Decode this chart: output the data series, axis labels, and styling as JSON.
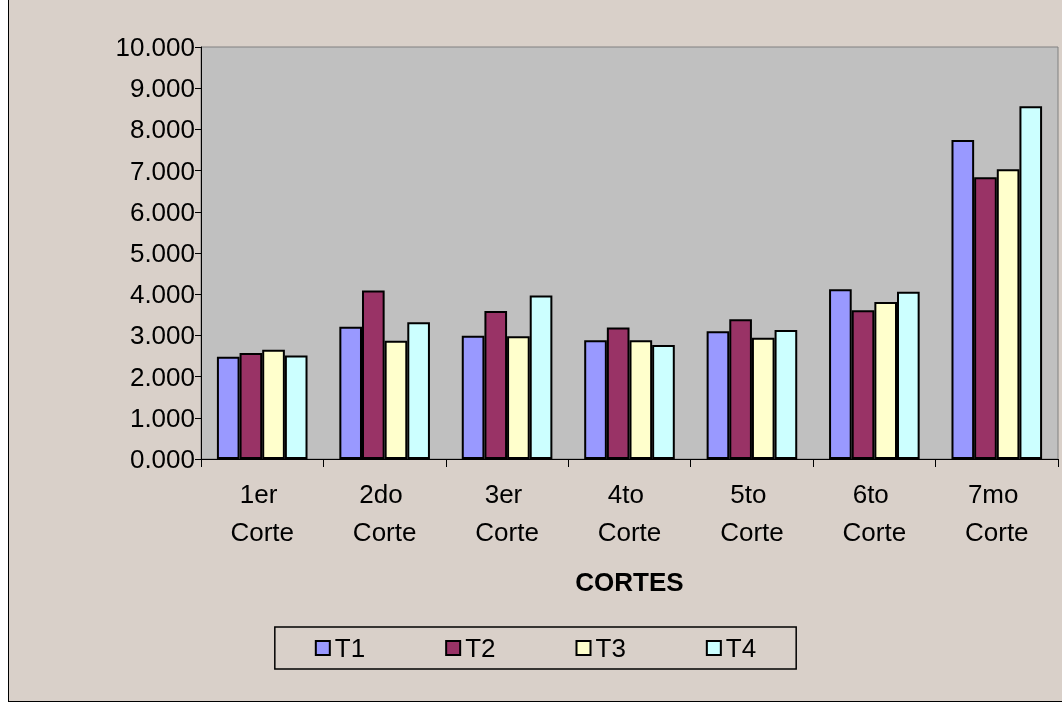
{
  "chart_data": {
    "type": "bar",
    "xlabel": "CORTES",
    "categories": [
      "1er Corte",
      "2do Corte",
      "3er Corte",
      "4to Corte",
      "5to Corte",
      "6to Corte",
      "7mo Corte"
    ],
    "series": [
      {
        "name": "T1",
        "color": "#9999ff",
        "values": [
          2.48,
          3.21,
          2.99,
          2.88,
          3.1,
          4.12,
          7.74
        ]
      },
      {
        "name": "T2",
        "color": "#993366",
        "values": [
          2.57,
          4.09,
          3.59,
          3.19,
          3.39,
          3.61,
          6.84
        ]
      },
      {
        "name": "T3",
        "color": "#ffffcc",
        "values": [
          2.65,
          2.87,
          2.98,
          2.88,
          2.94,
          3.81,
          7.03
        ]
      },
      {
        "name": "T4",
        "color": "#ccffff",
        "values": [
          2.51,
          3.32,
          3.97,
          2.77,
          3.13,
          4.06,
          8.56
        ]
      }
    ],
    "ylim": [
      0,
      10
    ],
    "yticks": [
      {
        "value": 0,
        "label": "0.000"
      },
      {
        "value": 1,
        "label": "1.000"
      },
      {
        "value": 2,
        "label": "2.000"
      },
      {
        "value": 3,
        "label": "3.000"
      },
      {
        "value": 4,
        "label": "4.000"
      },
      {
        "value": 5,
        "label": "5.000"
      },
      {
        "value": 6,
        "label": "6.000"
      },
      {
        "value": 7,
        "label": "7.000"
      },
      {
        "value": 8,
        "label": "8.000"
      },
      {
        "value": 9,
        "label": "9.000"
      },
      {
        "value": 10,
        "label": "10.000"
      }
    ],
    "grid": false,
    "legend": "bottom"
  }
}
